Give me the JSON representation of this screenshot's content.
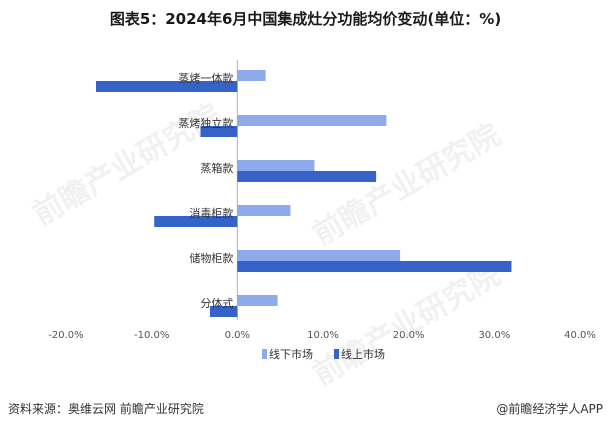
{
  "title": "图表5：2024年6月中国集成灶分功能均价变动(单位：%)",
  "footer": {
    "source": "资料来源：奥维云网 前瞻产业研究院",
    "brand": "@前瞻经济学人APP"
  },
  "watermark": "前瞻产业研究院",
  "colors": {
    "offline": "#8eaaea",
    "online": "#3563c8",
    "axis": "#b0b0b0",
    "grid": "#dcdcdc"
  },
  "chart_data": {
    "type": "bar",
    "orientation": "horizontal",
    "title": "图表5：2024年6月中国集成灶分功能均价变动(单位：%)",
    "categories": [
      "蒸烤一体款",
      "蒸烤独立款",
      "蒸箱款",
      "消毒柜款",
      "储物柜款",
      "分体式"
    ],
    "series": [
      {
        "name": "线下市场",
        "values": [
          3.3,
          17.4,
          9.0,
          6.2,
          19.0,
          4.7
        ]
      },
      {
        "name": "线上市场",
        "values": [
          -16.5,
          -4.3,
          16.2,
          -9.7,
          32.0,
          -3.2
        ]
      }
    ],
    "xlim": [
      -20,
      40
    ],
    "xticks": [
      "-20.0%",
      "-10.0%",
      "0.0%",
      "10.0%",
      "20.0%",
      "30.0%",
      "40.0%"
    ],
    "legend_position": "bottom",
    "grid": false
  }
}
